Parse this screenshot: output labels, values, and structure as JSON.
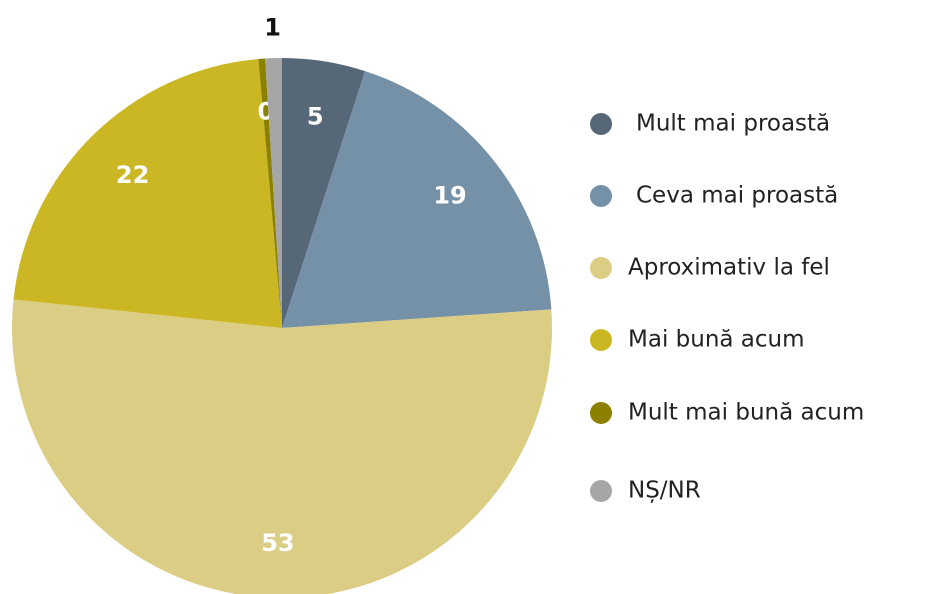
{
  "chart_data": {
    "type": "pie",
    "categories": [
      "Mult mai proastă",
      "Ceva mai proastă",
      "Aproximativ la fel",
      "Mai bună acum",
      "Mult mai bună acum",
      "NȘ/NR"
    ],
    "values": [
      5,
      19,
      53,
      22,
      0.4,
      1
    ],
    "value_labels": [
      "5",
      "19",
      "53",
      "22",
      "0",
      "1"
    ],
    "colors": [
      "#566778",
      "#7591a8",
      "#dccd85",
      "#cbb623",
      "#8c8000",
      "#a6a6a6"
    ],
    "legend": "right"
  }
}
